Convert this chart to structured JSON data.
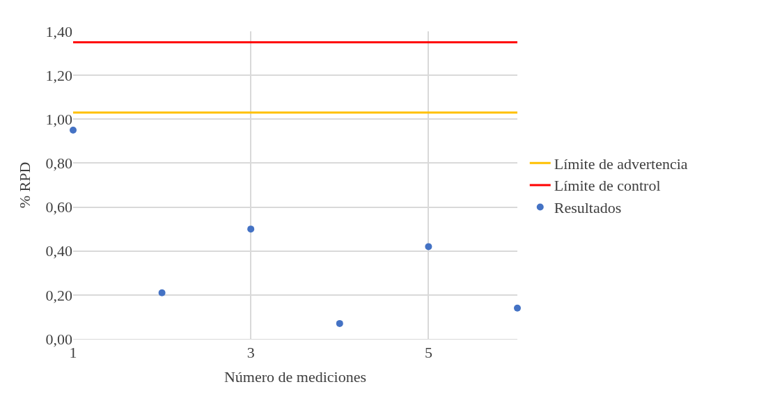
{
  "chart_data": {
    "type": "scatter",
    "xlabel": "Número de mediciones",
    "ylabel": "% RPD",
    "xlim": [
      1,
      6
    ],
    "xticks": [
      1,
      3,
      5
    ],
    "ylim": [
      0,
      1.4
    ],
    "yticks": [
      {
        "value": 0,
        "label": "0,00"
      },
      {
        "value": 0.2,
        "label": "0,20"
      },
      {
        "value": 0.4,
        "label": "0,40"
      },
      {
        "value": 0.6,
        "label": "0,60"
      },
      {
        "value": 0.8,
        "label": "0,80"
      },
      {
        "value": 1.0,
        "label": "1,00"
      },
      {
        "value": 1.2,
        "label": "1,20"
      },
      {
        "value": 1.4,
        "label": "1,40"
      }
    ],
    "grid": true,
    "legend": "right",
    "series": [
      {
        "name": "Límite de advertencia",
        "type": "line",
        "color": "#ffc000",
        "x": [
          1,
          6
        ],
        "values": [
          1.03,
          1.03
        ],
        "marker": "none"
      },
      {
        "name": "Límite de control",
        "type": "line",
        "color": "#ff0000",
        "x": [
          1,
          6
        ],
        "values": [
          1.35,
          1.35
        ],
        "marker": "none"
      },
      {
        "name": "Resultados",
        "color": "#4472c4",
        "x": [
          1,
          2,
          3,
          4,
          5,
          6
        ],
        "values": [
          0.95,
          0.21,
          0.5,
          0.07,
          0.42,
          0.14
        ],
        "marker": "circle"
      }
    ]
  }
}
